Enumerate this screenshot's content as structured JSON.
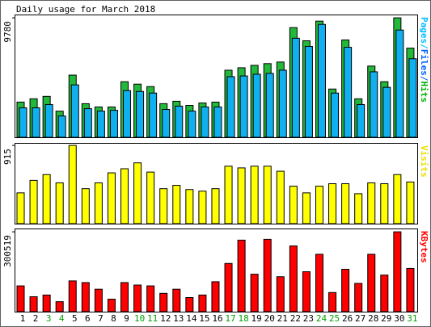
{
  "chart_data": [
    {
      "type": "bar",
      "title": "Daily usage for March 2018",
      "y_label": "Pages/Files/Hits",
      "y_label_colors": [
        "#00c0ff",
        "#0060ff",
        "#00b000"
      ],
      "ylim": [
        0,
        10050
      ],
      "yticks": [
        9780
      ],
      "series": [
        {
          "name": "Hits",
          "color": "#22b83a",
          "values": [
            2880,
            3150,
            3350,
            2140,
            5090,
            2750,
            2480,
            2480,
            4550,
            4350,
            4150,
            2750,
            2950,
            2610,
            2810,
            2880,
            5490,
            5690,
            5890,
            6030,
            6160,
            8980,
            7900,
            9510,
            3950,
            7970,
            3150,
            5830,
            4550,
            9780,
            7300
          ]
        },
        {
          "name": "Files",
          "color": "#10b0f0",
          "values": [
            2410,
            2410,
            2680,
            1740,
            4290,
            2340,
            2140,
            2210,
            3820,
            3750,
            3620,
            2280,
            2550,
            2140,
            2480,
            2480,
            4960,
            5020,
            5160,
            5230,
            5490,
            8110,
            7440,
            9240,
            3620,
            7370,
            2680,
            5360,
            4090,
            8780,
            6430
          ]
        }
      ]
    },
    {
      "type": "bar",
      "y_label": "Visits",
      "y_label_colors": [
        "#e8e000"
      ],
      "ylim": [
        0,
        944
      ],
      "yticks": [
        915
      ],
      "series": [
        {
          "name": "Visits",
          "color": "#ffff00",
          "values": [
            360,
            506,
            574,
            477,
            915,
            409,
            477,
            594,
            642,
            711,
            603,
            409,
            448,
            399,
            380,
            409,
            672,
            652,
            672,
            672,
            613,
            438,
            360,
            438,
            467,
            467,
            350,
            477,
            467,
            574,
            487
          ]
        }
      ]
    },
    {
      "type": "bar",
      "y_label": "KBytes",
      "y_label_colors": [
        "#ff0000"
      ],
      "ylim": [
        0,
        313000
      ],
      "yticks": [
        300519
      ],
      "categories": [
        "1",
        "2",
        "3",
        "4",
        "5",
        "6",
        "7",
        "8",
        "9",
        "10",
        "11",
        "12",
        "13",
        "14",
        "15",
        "16",
        "17",
        "18",
        "19",
        "20",
        "21",
        "22",
        "23",
        "24",
        "25",
        "26",
        "27",
        "28",
        "29",
        "30",
        "31"
      ],
      "category_colors": [
        "#000000",
        "#000000",
        "#00a000",
        "#00a000",
        "#000000",
        "#000000",
        "#000000",
        "#000000",
        "#000000",
        "#00a000",
        "#00a000",
        "#000000",
        "#000000",
        "#000000",
        "#000000",
        "#000000",
        "#00a000",
        "#00a000",
        "#000000",
        "#000000",
        "#000000",
        "#000000",
        "#000000",
        "#00a000",
        "#00a000",
        "#000000",
        "#000000",
        "#000000",
        "#000000",
        "#000000",
        "#00a000"
      ],
      "series": [
        {
          "name": "KBytes",
          "color": "#ff0000",
          "values": [
            97000,
            56300,
            62600,
            37600,
            115800,
            109500,
            84500,
            47000,
            109500,
            100200,
            97000,
            68900,
            84500,
            53200,
            62600,
            112700,
            181500,
            269200,
            140900,
            272300,
            131500,
            247300,
            150300,
            216000,
            72000,
            159600,
            106400,
            216000,
            137700,
            300519,
            162800
          ]
        }
      ]
    }
  ]
}
